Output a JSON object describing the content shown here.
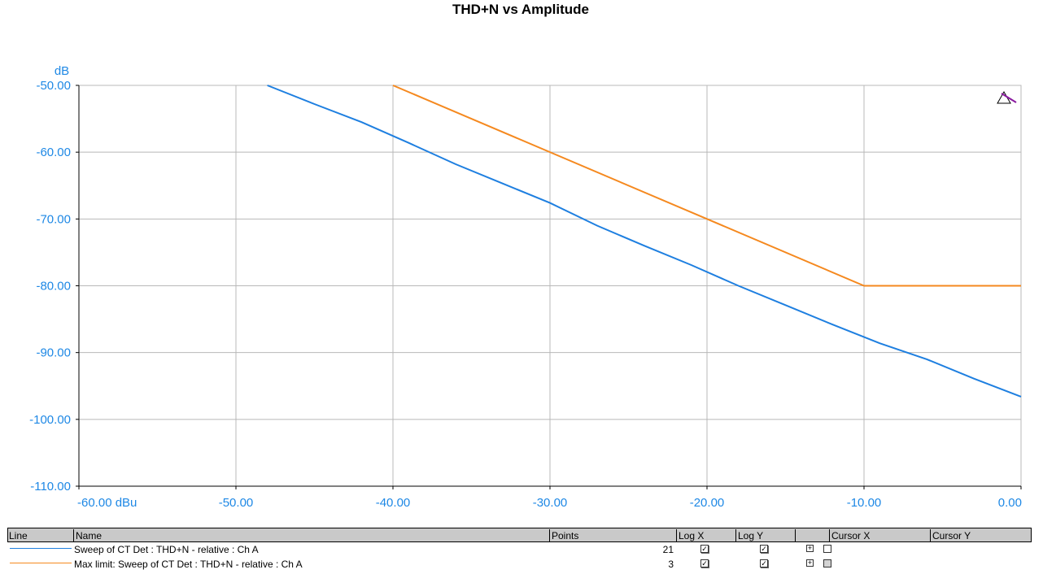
{
  "chart_data": {
    "type": "line",
    "title": "THD+N vs Amplitude",
    "ylabel": "dB",
    "xlim": [
      -60,
      0
    ],
    "ylim": [
      -110,
      -50
    ],
    "xticks": [
      -60,
      -50,
      -40,
      -30,
      -20,
      -10,
      0
    ],
    "xtick_labels": [
      "-60.00 dBu",
      "-50.00",
      "-40.00",
      "-30.00",
      "-20.00",
      "-10.00",
      "0.00"
    ],
    "yticks": [
      -50,
      -60,
      -70,
      -80,
      -90,
      -100,
      -110
    ],
    "ytick_labels": [
      "-50.00",
      "-60.00",
      "-70.00",
      "-80.00",
      "-90.00",
      "-100.00",
      "-110.00"
    ],
    "grid": true,
    "series": [
      {
        "name": "Sweep of CT Det : THD+N - relative : Ch A",
        "color": "#1e7fe0",
        "x": [
          -48,
          -45,
          -42,
          -39,
          -36,
          -33,
          -30,
          -27,
          -24,
          -21,
          -18,
          -15,
          -12,
          -9,
          -6,
          -3,
          0
        ],
        "y": [
          -50.0,
          -52.8,
          -55.5,
          -58.6,
          -61.8,
          -64.7,
          -67.6,
          -71.0,
          -74.0,
          -76.9,
          -80.0,
          -82.9,
          -85.8,
          -88.6,
          -91.0,
          -93.9,
          -96.6
        ]
      },
      {
        "name": "Max limit: Sweep of CT Det : THD+N - relative : Ch A",
        "color": "#f5891f",
        "x": [
          -40,
          -10,
          0
        ],
        "y": [
          -50,
          -80,
          -80
        ]
      }
    ]
  },
  "legend": {
    "headers": {
      "line": "Line",
      "name": "Name",
      "points": "Points",
      "log_x": "Log X",
      "log_y": "Log Y",
      "blank": "",
      "cursor_x": "Cursor X",
      "cursor_y": "Cursor Y"
    },
    "rows": [
      {
        "name": "Sweep of CT Det : THD+N - relative : Ch A",
        "points": "21",
        "log_x": true,
        "log_y": true,
        "color": "#1e7fe0"
      },
      {
        "name": "Max limit: Sweep of CT Det : THD+N - relative : Ch A",
        "points": "3",
        "log_x": true,
        "log_y": true,
        "color": "#f5891f"
      }
    ]
  },
  "icons": {
    "corner": "autoscale-icon",
    "expand": "plus-box-icon",
    "check": "checkmark-icon"
  }
}
